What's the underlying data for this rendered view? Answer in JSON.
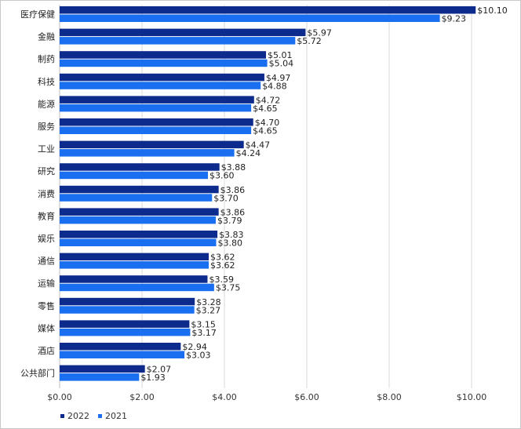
{
  "chart_data": {
    "type": "bar",
    "orientation": "horizontal",
    "title": "",
    "xlabel": "",
    "ylabel": "",
    "xlim": [
      0,
      10.5
    ],
    "grid": true,
    "legend_position": "bottom-left",
    "categories": [
      "医疗保健",
      "金融",
      "制药",
      "科技",
      "能源",
      "服务",
      "工业",
      "研究",
      "消费",
      "教育",
      "娱乐",
      "通信",
      "运输",
      "零售",
      "媒体",
      "酒店",
      "公共部门"
    ],
    "ticks": [
      0,
      2,
      4,
      6,
      8,
      10
    ],
    "tick_labels": [
      "$0.00",
      "$2.00",
      "$4.00",
      "$6.00",
      "$8.00",
      "$10.00"
    ],
    "series": [
      {
        "name": "2022",
        "color": "#0d2b8c",
        "values": [
          10.1,
          5.97,
          5.01,
          4.97,
          4.72,
          4.7,
          4.47,
          3.88,
          3.86,
          3.86,
          3.83,
          3.62,
          3.59,
          3.28,
          3.15,
          2.94,
          2.07
        ],
        "labels": [
          "$10.10",
          "$5.97",
          "$5.01",
          "$4.97",
          "$4.72",
          "$4.70",
          "$4.47",
          "$3.88",
          "$3.86",
          "$3.86",
          "$3.83",
          "$3.62",
          "$3.59",
          "$3.28",
          "$3.15",
          "$2.94",
          "$2.07"
        ]
      },
      {
        "name": "2021",
        "color": "#1a6ef0",
        "values": [
          9.23,
          5.72,
          5.04,
          4.88,
          4.65,
          4.65,
          4.24,
          3.6,
          3.7,
          3.79,
          3.8,
          3.62,
          3.75,
          3.27,
          3.17,
          3.03,
          1.93
        ],
        "labels": [
          "$9.23",
          "$5.72",
          "$5.04",
          "$4.88",
          "$4.65",
          "$4.65",
          "$4.24",
          "$3.60",
          "$3.70",
          "$3.79",
          "$3.80",
          "$3.62",
          "$3.75",
          "$3.27",
          "$3.17",
          "$3.03",
          "$1.93"
        ]
      }
    ]
  }
}
